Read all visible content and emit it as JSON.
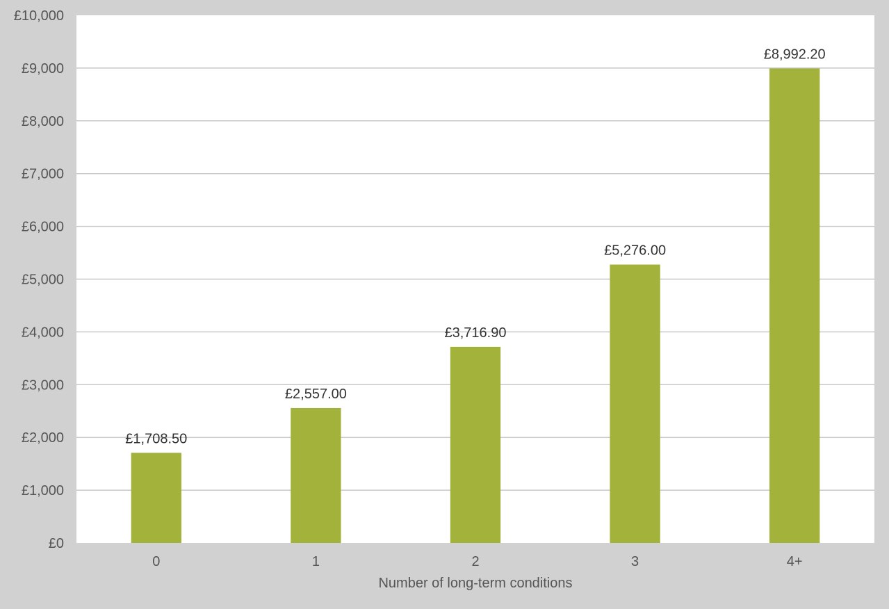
{
  "chart_data": {
    "type": "bar",
    "title": "",
    "xlabel": "Number of long-term conditions",
    "ylabel": "",
    "categories": [
      "0",
      "1",
      "2",
      "3",
      "4+"
    ],
    "values": [
      1708.5,
      2557.0,
      3716.9,
      5276.0,
      8992.2
    ],
    "data_labels": [
      "£1,708.50",
      "£2,557.00",
      "£3,716.90",
      "£5,276.00",
      "£8,992.20"
    ],
    "ylim": [
      0,
      10000
    ],
    "yticks": [
      0,
      1000,
      2000,
      3000,
      4000,
      5000,
      6000,
      7000,
      8000,
      9000,
      10000
    ],
    "ytick_labels": [
      "£0",
      "£1,000",
      "£2,000",
      "£3,000",
      "£4,000",
      "£5,000",
      "£6,000",
      "£7,000",
      "£8,000",
      "£9,000",
      "£10,000"
    ],
    "grid": true,
    "legend": "none",
    "colors": {
      "bar": "#a3b23a",
      "plot_background": "#ffffff",
      "page_background": "#d0d1d0",
      "gridline": "#c8c8c8"
    }
  }
}
